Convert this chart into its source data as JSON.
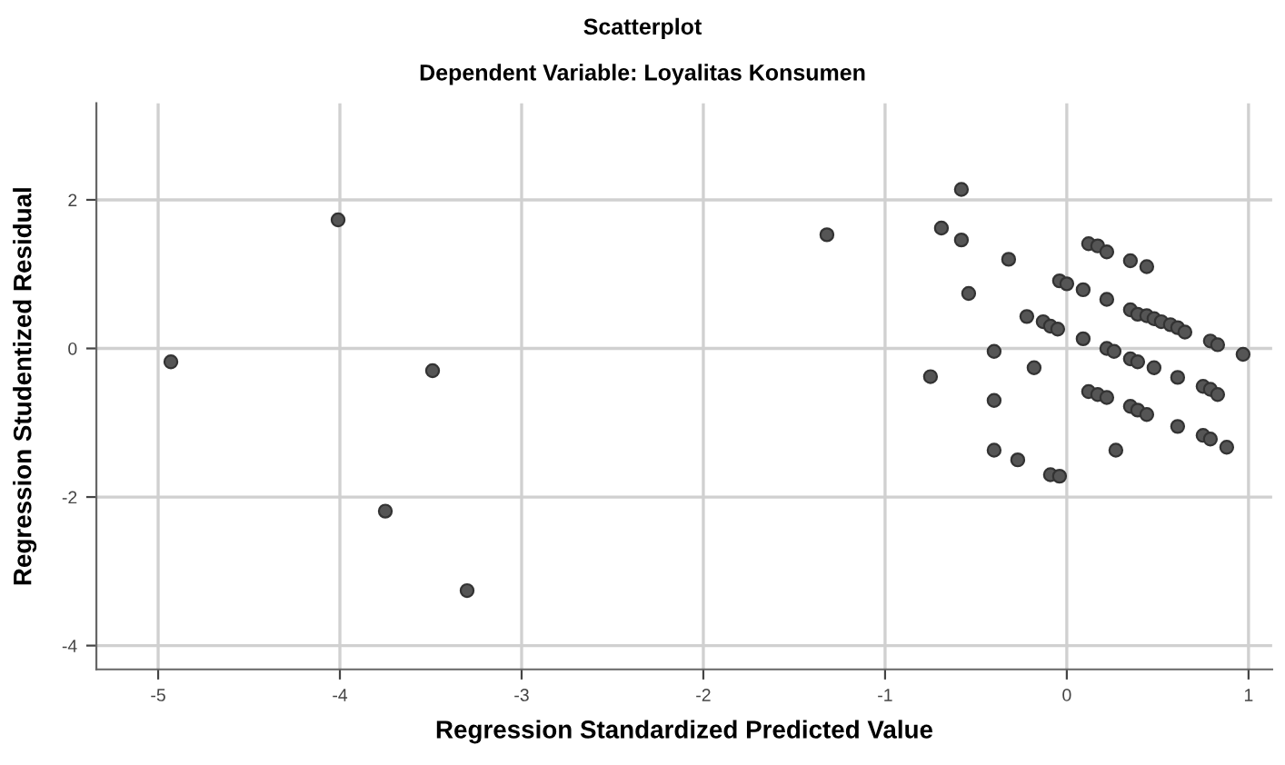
{
  "chart_data": {
    "type": "scatter",
    "title": "Scatterplot",
    "subtitle": "Dependent Variable: Loyalitas Konsumen",
    "xlabel": "Regression Standardized Predicted Value",
    "ylabel": "Regression Studentized Residual",
    "x": [
      -4.93,
      -4.01,
      -3.49,
      -3.75,
      -3.3,
      -1.32,
      -0.58,
      -0.69,
      -0.58,
      -0.32,
      -0.54,
      -0.75,
      -0.4,
      -0.18,
      -0.4,
      -0.4,
      -0.27,
      -0.09,
      -0.04,
      -0.22,
      -0.13,
      -0.09,
      -0.05,
      -0.04,
      0.0,
      0.09,
      0.22,
      0.09,
      0.12,
      0.17,
      0.22,
      0.35,
      0.44,
      0.35,
      0.39,
      0.44,
      0.48,
      0.52,
      0.57,
      0.61,
      0.65,
      0.79,
      0.83,
      0.97,
      0.22,
      0.26,
      0.35,
      0.39,
      0.48,
      0.61,
      0.75,
      0.79,
      0.83,
      0.12,
      0.17,
      0.22,
      0.35,
      0.39,
      0.44,
      0.61,
      0.75,
      0.79,
      0.88,
      0.27
    ],
    "values": [
      -0.18,
      1.73,
      -0.3,
      -2.19,
      -3.26,
      1.53,
      2.14,
      1.62,
      1.46,
      1.2,
      0.74,
      -0.38,
      -0.04,
      -0.26,
      -0.7,
      -1.37,
      -1.5,
      -1.7,
      -1.72,
      0.43,
      0.36,
      0.3,
      0.26,
      0.91,
      0.87,
      0.79,
      0.66,
      0.13,
      1.41,
      1.38,
      1.3,
      1.18,
      1.1,
      0.52,
      0.46,
      0.44,
      0.4,
      0.36,
      0.32,
      0.28,
      0.22,
      0.1,
      0.05,
      -0.08,
      0.0,
      -0.04,
      -0.14,
      -0.18,
      -0.26,
      -0.39,
      -0.51,
      -0.55,
      -0.62,
      -0.58,
      -0.62,
      -0.66,
      -0.78,
      -0.83,
      -0.89,
      -1.05,
      -1.17,
      -1.22,
      -1.33,
      -1.37
    ],
    "color": "#555555",
    "marker": "circle",
    "grid": true,
    "xlim": [
      -5.34,
      1.13
    ],
    "ylim": [
      -4.32,
      3.3
    ],
    "xticks": [
      -5,
      -4,
      -3,
      -2,
      -1,
      0,
      1
    ],
    "yticks": [
      -4,
      -2,
      0,
      2
    ]
  }
}
